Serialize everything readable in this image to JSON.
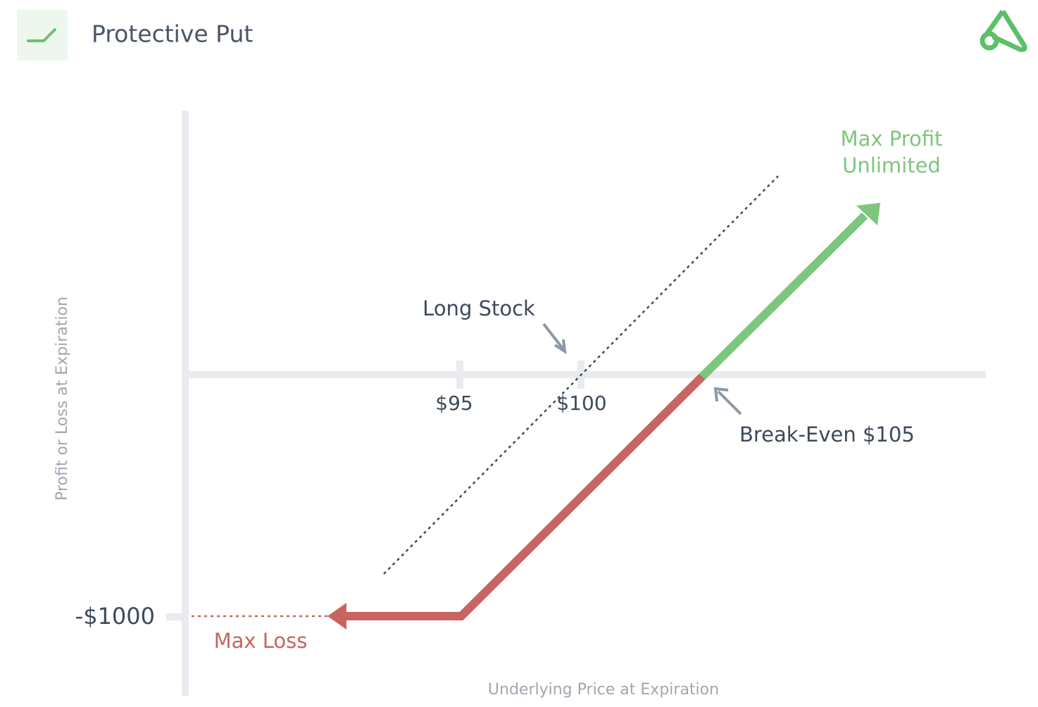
{
  "header": {
    "title": "Protective Put"
  },
  "axes": {
    "y_label": "Profit or Loss at Expiration",
    "x_label": "Underlying Price at Expiration"
  },
  "ticks": {
    "x": [
      "$95",
      "$100"
    ],
    "y": [
      "-$1000"
    ]
  },
  "annotations": {
    "long_stock": "Long Stock",
    "break_even": "Break-Even $105",
    "max_profit": [
      "Max Profit",
      "Unlimited"
    ],
    "max_loss": "Max Loss"
  }
}
